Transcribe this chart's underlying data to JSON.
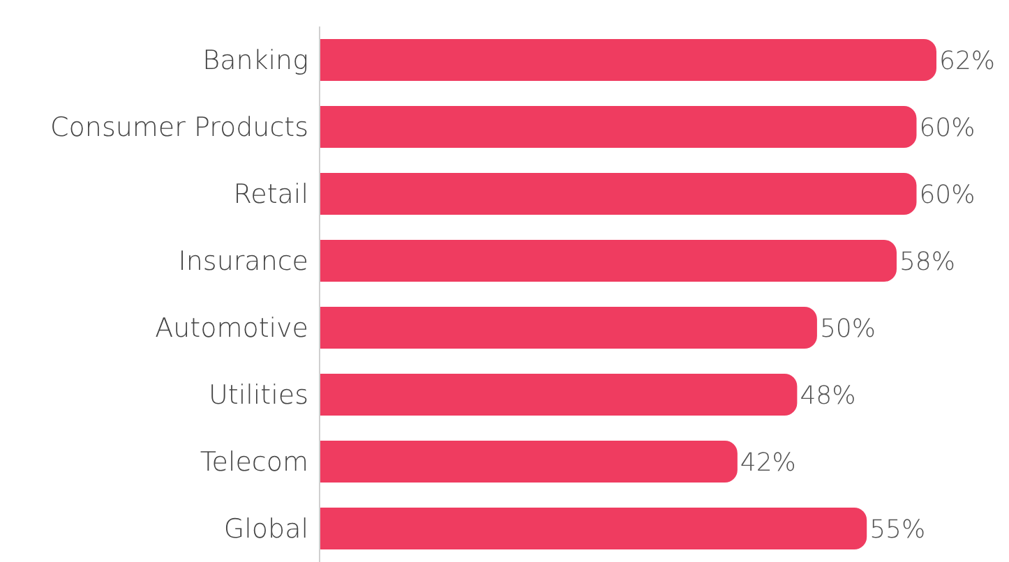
{
  "chart_data": {
    "type": "bar",
    "orientation": "horizontal",
    "relative": false,
    "categories": [
      "Banking",
      "Consumer Products",
      "Retail",
      "Insurance",
      "Automotive",
      "Utilities",
      "Telecom",
      "Global"
    ],
    "values": [
      62,
      60,
      60,
      58,
      50,
      48,
      42,
      55
    ],
    "value_labels": [
      "62%",
      "60%",
      "60%",
      "58%",
      "50%",
      "48%",
      "42%",
      "55%"
    ],
    "color": "#ef3c60"
  }
}
